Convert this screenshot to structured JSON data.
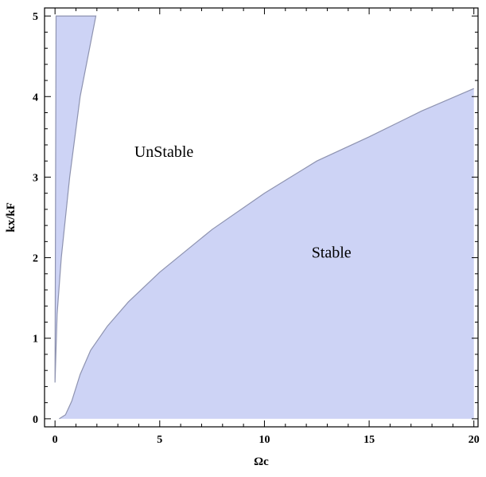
{
  "chart_data": {
    "type": "area",
    "title": "",
    "xlabel": "Ωc",
    "ylabel": "kx/kF",
    "xlim": [
      -0.5,
      20.2
    ],
    "ylim": [
      -0.1,
      5.1
    ],
    "xticks": [
      0,
      5,
      10,
      15,
      20
    ],
    "yticks": [
      0,
      1,
      2,
      3,
      4,
      5
    ],
    "grid": false,
    "legend": "none",
    "fill_color": "#cdd3f5",
    "edge_color": "#8e93b0",
    "annotations": [
      {
        "text": "UnStable",
        "x": 5.2,
        "y": 3.25
      },
      {
        "text": "Stable",
        "x": 13.2,
        "y": 2.0
      }
    ],
    "regions": [
      {
        "name": "Stable",
        "boundary": [
          {
            "x": 0.2,
            "y": 0.0
          },
          {
            "x": 0.5,
            "y": 0.05
          },
          {
            "x": 0.8,
            "y": 0.22
          },
          {
            "x": 1.2,
            "y": 0.55
          },
          {
            "x": 1.7,
            "y": 0.85
          },
          {
            "x": 2.5,
            "y": 1.15
          },
          {
            "x": 3.5,
            "y": 1.45
          },
          {
            "x": 5,
            "y": 1.82
          },
          {
            "x": 7.5,
            "y": 2.35
          },
          {
            "x": 10,
            "y": 2.8
          },
          {
            "x": 12.5,
            "y": 3.2
          },
          {
            "x": 15,
            "y": 3.5
          },
          {
            "x": 17.5,
            "y": 3.82
          },
          {
            "x": 20,
            "y": 4.1
          }
        ]
      },
      {
        "name": "Stable-upper-left",
        "polygon": [
          {
            "x": 0.0,
            "y": 0.45
          },
          {
            "x": 0.1,
            "y": 1.3
          },
          {
            "x": 0.3,
            "y": 2.0
          },
          {
            "x": 0.7,
            "y": 3.0
          },
          {
            "x": 1.2,
            "y": 4.0
          },
          {
            "x": 1.95,
            "y": 5.0
          },
          {
            "x": 0.05,
            "y": 5.0
          }
        ]
      }
    ]
  }
}
